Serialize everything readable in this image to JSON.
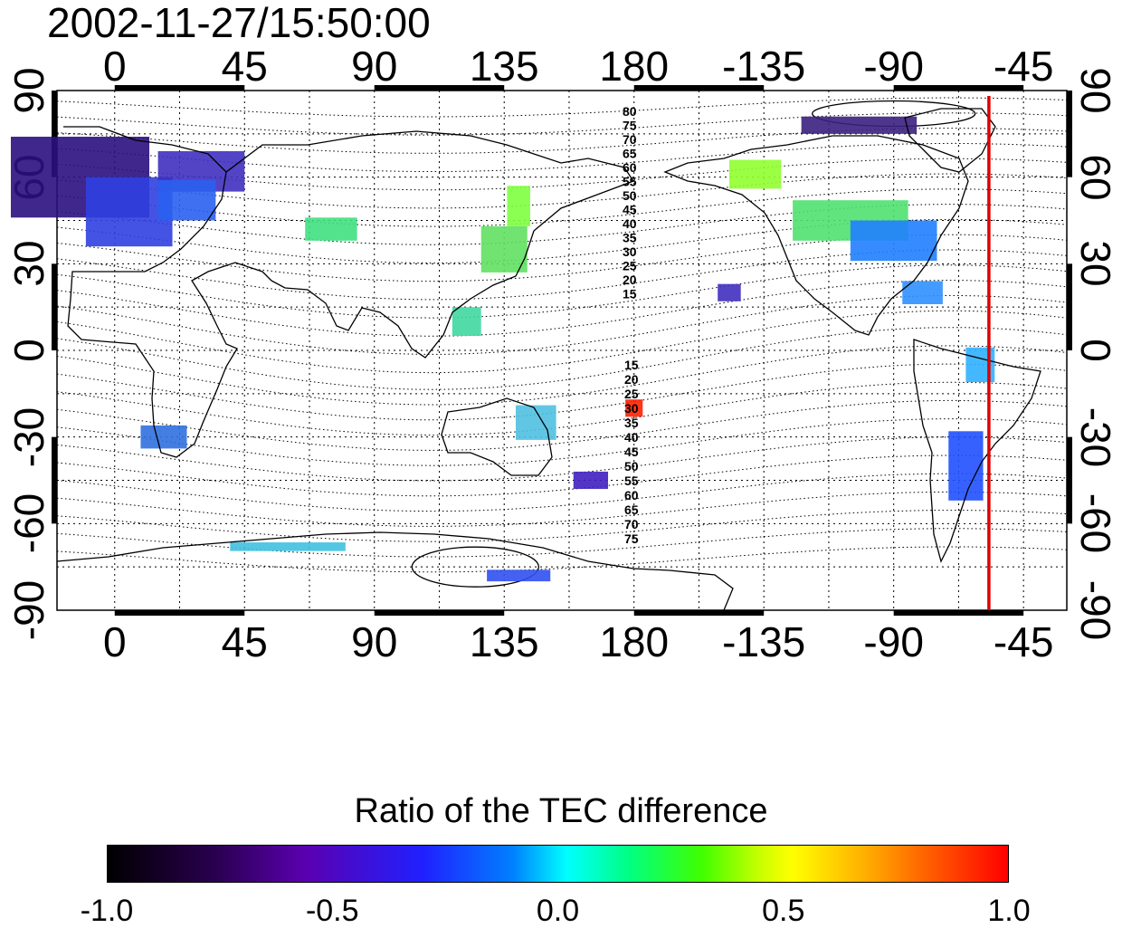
{
  "timestamp": "2002-11-27/15:50:00",
  "lon_ticks": [
    {
      "lon": 0,
      "label": "0"
    },
    {
      "lon": 45,
      "label": "45"
    },
    {
      "lon": 90,
      "label": "90"
    },
    {
      "lon": 135,
      "label": "135"
    },
    {
      "lon": 180,
      "label": "180"
    },
    {
      "lon": 225,
      "label": "-135"
    },
    {
      "lon": 270,
      "label": "-90"
    },
    {
      "lon": 315,
      "label": "-45"
    }
  ],
  "lat_ticks": [
    {
      "lat": 90,
      "label": "90"
    },
    {
      "lat": 60,
      "label": "60"
    },
    {
      "lat": 30,
      "label": "30"
    },
    {
      "lat": 0,
      "label": "0"
    },
    {
      "lat": -30,
      "label": "-30"
    },
    {
      "lat": -60,
      "label": "-60"
    },
    {
      "lat": -90,
      "label": "-90"
    }
  ],
  "map": {
    "lon_range": [
      -20,
      330
    ],
    "lat_range": [
      -90,
      90
    ],
    "terminator_lon": 303,
    "terminator_color": "#e00000"
  },
  "contour_labels_north": [
    "80",
    "75",
    "70",
    "65",
    "60",
    "55",
    "50",
    "45",
    "40",
    "35",
    "30",
    "25",
    "20",
    "15"
  ],
  "contour_labels_south": [
    "15",
    "20",
    "25",
    "30",
    "35",
    "40",
    "45",
    "50",
    "55",
    "60",
    "65",
    "70",
    "75"
  ],
  "tec_patches": [
    {
      "lon": -12,
      "lat": 60,
      "w": 48,
      "h": 28,
      "color": "#2a1080"
    },
    {
      "lon": 5,
      "lat": 48,
      "w": 30,
      "h": 24,
      "color": "#3040e0"
    },
    {
      "lon": 30,
      "lat": 62,
      "w": 30,
      "h": 14,
      "color": "#4030c0"
    },
    {
      "lon": 25,
      "lat": 52,
      "w": 20,
      "h": 14,
      "color": "#2a60f0"
    },
    {
      "lon": 75,
      "lat": 42,
      "w": 18,
      "h": 8,
      "color": "#40e080"
    },
    {
      "lon": 135,
      "lat": 35,
      "w": 16,
      "h": 16,
      "color": "#60e060"
    },
    {
      "lon": 140,
      "lat": 50,
      "w": 8,
      "h": 14,
      "color": "#80ff40"
    },
    {
      "lon": 122,
      "lat": 10,
      "w": 10,
      "h": 10,
      "color": "#40d8a0"
    },
    {
      "lon": 146,
      "lat": -25,
      "w": 14,
      "h": 12,
      "color": "#50c0e0"
    },
    {
      "lon": 180,
      "lat": -20,
      "w": 6,
      "h": 6,
      "color": "#ff2000"
    },
    {
      "lon": 222,
      "lat": 61,
      "w": 18,
      "h": 10,
      "color": "#90ff30"
    },
    {
      "lon": 255,
      "lat": 45,
      "w": 40,
      "h": 14,
      "color": "#50e070"
    },
    {
      "lon": 270,
      "lat": 38,
      "w": 30,
      "h": 14,
      "color": "#2080ff"
    },
    {
      "lon": 258,
      "lat": 78,
      "w": 40,
      "h": 6,
      "color": "#3a2080"
    },
    {
      "lon": 280,
      "lat": 20,
      "w": 14,
      "h": 8,
      "color": "#3090ff"
    },
    {
      "lon": 295,
      "lat": -40,
      "w": 12,
      "h": 24,
      "color": "#2050ff"
    },
    {
      "lon": 300,
      "lat": -5,
      "w": 10,
      "h": 12,
      "color": "#30b0ff"
    },
    {
      "lon": 17,
      "lat": -30,
      "w": 16,
      "h": 8,
      "color": "#3070e0"
    },
    {
      "lon": 213,
      "lat": 20,
      "w": 8,
      "h": 6,
      "color": "#4030c0"
    },
    {
      "lon": 165,
      "lat": -45,
      "w": 12,
      "h": 6,
      "color": "#4020c0"
    },
    {
      "lon": 140,
      "lat": -78,
      "w": 22,
      "h": 4,
      "color": "#3050f0"
    },
    {
      "lon": 60,
      "lat": -68,
      "w": 40,
      "h": 3,
      "color": "#40c0e0"
    }
  ],
  "colorbar": {
    "title": "Ratio of the TEC difference",
    "ticks": [
      {
        "value": -1.0,
        "label": "-1.0"
      },
      {
        "value": -0.5,
        "label": "-0.5"
      },
      {
        "value": 0.0,
        "label": "0.0"
      },
      {
        "value": 0.5,
        "label": "0.5"
      },
      {
        "value": 1.0,
        "label": "1.0"
      }
    ],
    "colors": [
      "#000000",
      "#5a00b0",
      "#0000ff",
      "#00ffff",
      "#00ff00",
      "#ffff00",
      "#ff0000"
    ]
  }
}
